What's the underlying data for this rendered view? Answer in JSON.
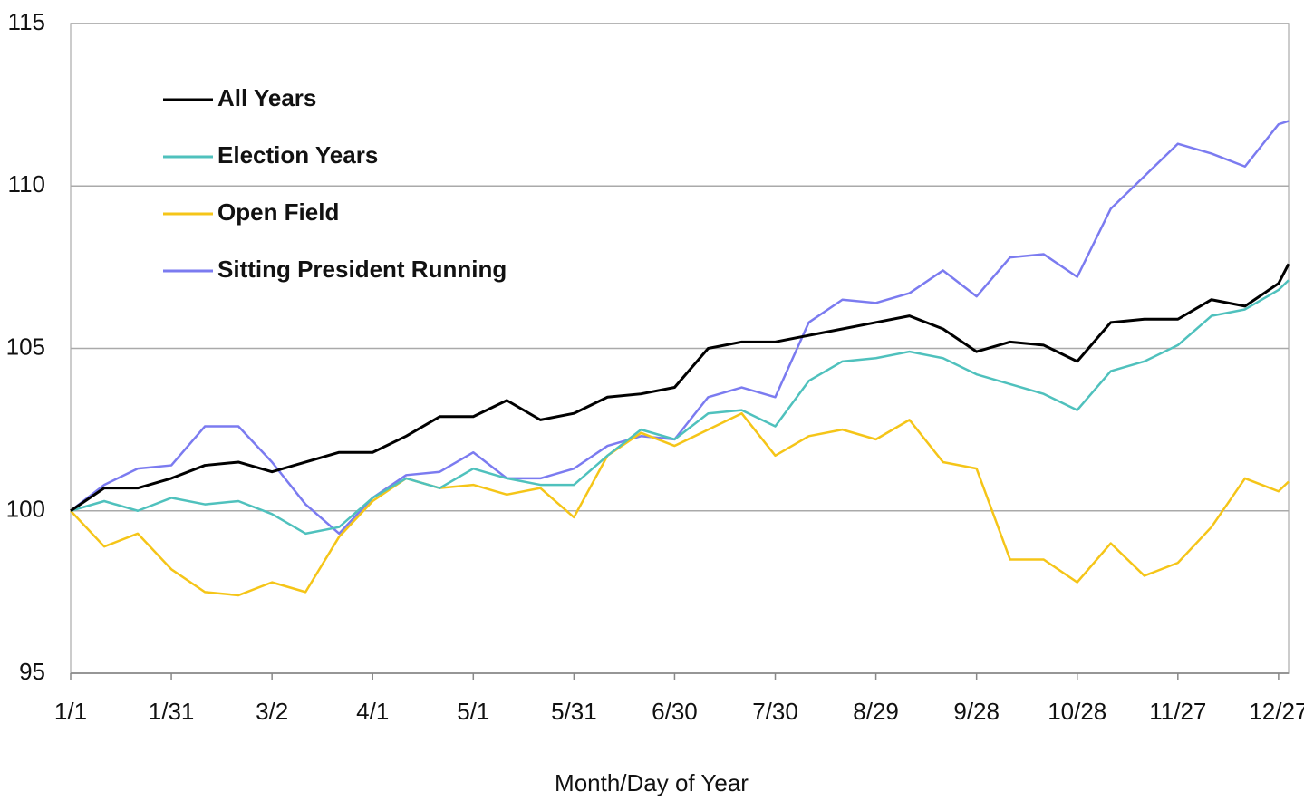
{
  "chart_data": {
    "type": "line",
    "x_label": "Month/Day of Year",
    "x": [
      0,
      10,
      20,
      30,
      40,
      50,
      60,
      70,
      80,
      90,
      100,
      110,
      120,
      130,
      140,
      150,
      160,
      170,
      180,
      190,
      200,
      210,
      220,
      230,
      240,
      250,
      260,
      270,
      280,
      290,
      300,
      310,
      320,
      330,
      340,
      350,
      360,
      363
    ],
    "xlim": [
      0,
      363
    ],
    "xticks": [
      {
        "value": 0,
        "label": "1/1"
      },
      {
        "value": 30,
        "label": "1/31"
      },
      {
        "value": 60,
        "label": "3/2"
      },
      {
        "value": 90,
        "label": "4/1"
      },
      {
        "value": 120,
        "label": "5/1"
      },
      {
        "value": 150,
        "label": "5/31"
      },
      {
        "value": 180,
        "label": "6/30"
      },
      {
        "value": 210,
        "label": "7/30"
      },
      {
        "value": 240,
        "label": "8/29"
      },
      {
        "value": 270,
        "label": "9/28"
      },
      {
        "value": 300,
        "label": "10/28"
      },
      {
        "value": 330,
        "label": "11/27"
      },
      {
        "value": 360,
        "label": "12/27"
      }
    ],
    "ylim": [
      95,
      115
    ],
    "yticks": [
      95,
      100,
      105,
      110,
      115
    ],
    "grid": true,
    "legend": "top-left",
    "series": [
      {
        "name": "All Years",
        "color": "#000000",
        "values": [
          100,
          100.7,
          100.7,
          101.0,
          101.4,
          101.5,
          101.2,
          101.5,
          101.8,
          101.8,
          102.3,
          102.9,
          102.9,
          103.4,
          102.8,
          103.0,
          103.5,
          103.6,
          103.8,
          105.0,
          105.2,
          105.2,
          105.4,
          105.6,
          105.8,
          106.0,
          105.6,
          104.9,
          105.2,
          105.1,
          104.6,
          105.8,
          105.9,
          105.9,
          106.5,
          106.3,
          107.0,
          107.6
        ]
      },
      {
        "name": "Election Years",
        "color": "#4fc1bd",
        "values": [
          100,
          100.3,
          100.0,
          100.4,
          100.2,
          100.3,
          99.9,
          99.3,
          99.5,
          100.4,
          101.0,
          100.7,
          101.3,
          101.0,
          100.8,
          100.8,
          101.7,
          102.5,
          102.2,
          103.0,
          103.1,
          102.6,
          104.0,
          104.6,
          104.7,
          104.9,
          104.7,
          104.2,
          103.9,
          103.6,
          103.1,
          104.3,
          104.6,
          105.1,
          106.0,
          106.2,
          106.8,
          107.1
        ]
      },
      {
        "name": "Open Field",
        "color": "#f5c518",
        "values": [
          100,
          98.9,
          99.3,
          98.2,
          97.5,
          97.4,
          97.8,
          97.5,
          99.2,
          100.3,
          101.0,
          100.7,
          100.8,
          100.5,
          100.7,
          99.8,
          101.7,
          102.4,
          102.0,
          102.5,
          103.0,
          101.7,
          102.3,
          102.5,
          102.2,
          102.8,
          101.5,
          101.3,
          98.5,
          98.5,
          97.8,
          99.0,
          98.0,
          98.4,
          99.5,
          101.0,
          100.6,
          100.9
        ]
      },
      {
        "name": "Sitting President Running",
        "color": "#7b7bf0",
        "values": [
          100,
          100.8,
          101.3,
          101.4,
          102.6,
          102.6,
          101.5,
          100.2,
          99.3,
          100.4,
          101.1,
          101.2,
          101.8,
          101.0,
          101.0,
          101.3,
          102.0,
          102.3,
          102.2,
          103.5,
          103.8,
          103.5,
          105.8,
          106.5,
          106.4,
          106.7,
          107.4,
          106.6,
          107.8,
          107.9,
          107.2,
          109.3,
          110.3,
          111.3,
          111.0,
          110.6,
          111.9,
          112.0
        ]
      }
    ]
  }
}
